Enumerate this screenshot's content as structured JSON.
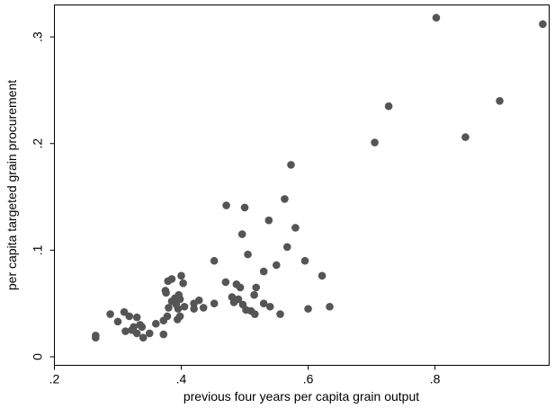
{
  "chart_data": {
    "type": "scatter",
    "title": "",
    "xlabel": "previous four years per capita grain output",
    "ylabel": "per capita targeted grain procurement",
    "xlim": [
      0.2,
      0.98
    ],
    "ylim": [
      -0.008,
      0.33
    ],
    "grid": false,
    "marker_color": "#555555",
    "x_ticks": [
      {
        "value": 0.2,
        "label": ".2"
      },
      {
        "value": 0.4,
        "label": ".4"
      },
      {
        "value": 0.6,
        "label": ".6"
      },
      {
        "value": 0.8,
        "label": ".8"
      }
    ],
    "y_ticks": [
      {
        "value": 0,
        "label": "0"
      },
      {
        "value": 0.1,
        "label": ".1"
      },
      {
        "value": 0.2,
        "label": ".2"
      },
      {
        "value": 0.3,
        "label": ".3"
      }
    ],
    "points": [
      [
        0.265,
        0.018
      ],
      [
        0.265,
        0.02
      ],
      [
        0.288,
        0.04
      ],
      [
        0.3,
        0.033
      ],
      [
        0.31,
        0.042
      ],
      [
        0.312,
        0.024
      ],
      [
        0.318,
        0.038
      ],
      [
        0.322,
        0.025
      ],
      [
        0.325,
        0.028
      ],
      [
        0.33,
        0.037
      ],
      [
        0.33,
        0.022
      ],
      [
        0.335,
        0.03
      ],
      [
        0.338,
        0.028
      ],
      [
        0.34,
        0.018
      ],
      [
        0.35,
        0.022
      ],
      [
        0.36,
        0.031
      ],
      [
        0.372,
        0.021
      ],
      [
        0.372,
        0.034
      ],
      [
        0.375,
        0.062
      ],
      [
        0.376,
        0.06
      ],
      [
        0.378,
        0.038
      ],
      [
        0.379,
        0.071
      ],
      [
        0.38,
        0.046
      ],
      [
        0.385,
        0.073
      ],
      [
        0.385,
        0.052
      ],
      [
        0.39,
        0.055
      ],
      [
        0.392,
        0.049
      ],
      [
        0.394,
        0.035
      ],
      [
        0.395,
        0.045
      ],
      [
        0.396,
        0.058
      ],
      [
        0.398,
        0.038
      ],
      [
        0.398,
        0.054
      ],
      [
        0.4,
        0.076
      ],
      [
        0.403,
        0.069
      ],
      [
        0.405,
        0.047
      ],
      [
        0.42,
        0.05
      ],
      [
        0.42,
        0.045
      ],
      [
        0.428,
        0.053
      ],
      [
        0.435,
        0.046
      ],
      [
        0.452,
        0.05
      ],
      [
        0.452,
        0.09
      ],
      [
        0.47,
        0.07
      ],
      [
        0.471,
        0.142
      ],
      [
        0.48,
        0.056
      ],
      [
        0.483,
        0.051
      ],
      [
        0.487,
        0.068
      ],
      [
        0.49,
        0.054
      ],
      [
        0.493,
        0.065
      ],
      [
        0.496,
        0.115
      ],
      [
        0.497,
        0.049
      ],
      [
        0.5,
        0.14
      ],
      [
        0.502,
        0.044
      ],
      [
        0.505,
        0.096
      ],
      [
        0.51,
        0.043
      ],
      [
        0.515,
        0.058
      ],
      [
        0.516,
        0.04
      ],
      [
        0.518,
        0.065
      ],
      [
        0.53,
        0.08
      ],
      [
        0.53,
        0.05
      ],
      [
        0.538,
        0.128
      ],
      [
        0.54,
        0.047
      ],
      [
        0.55,
        0.086
      ],
      [
        0.556,
        0.04
      ],
      [
        0.563,
        0.148
      ],
      [
        0.567,
        0.103
      ],
      [
        0.573,
        0.18
      ],
      [
        0.58,
        0.121
      ],
      [
        0.595,
        0.09
      ],
      [
        0.6,
        0.045
      ],
      [
        0.622,
        0.076
      ],
      [
        0.634,
        0.047
      ],
      [
        0.705,
        0.201
      ],
      [
        0.727,
        0.235
      ],
      [
        0.802,
        0.318
      ],
      [
        0.848,
        0.206
      ],
      [
        0.902,
        0.24
      ],
      [
        0.97,
        0.312
      ]
    ]
  }
}
